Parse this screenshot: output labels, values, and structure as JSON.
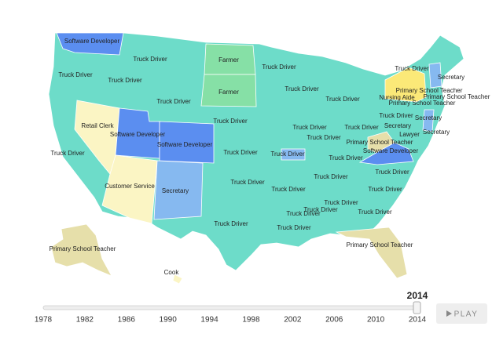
{
  "map": {
    "labels": [
      "Software Developer",
      "Truck Driver",
      "Farmer",
      "Truck Driver",
      "Truck Driver",
      "Farmer",
      "Truck Driver",
      "Truck Driver",
      "Truck Driver",
      "Secretary",
      "Truck Driver",
      "Nursing Aide",
      "Primary School Teacher",
      "Primary School Teacher",
      "Primary School Teacher",
      "Truck Driver",
      "Retail Clerk",
      "Truck Driver",
      "Truck Driver",
      "Secretary",
      "Software Developer",
      "Software Developer",
      "Truck Driver",
      "Truck Driver",
      "Secretary",
      "Truck Driver",
      "Lawyer",
      "Secretary",
      "Primary School Teacher",
      "Truck Driver",
      "Truck Driver",
      "Truck Driver",
      "Truck Driver",
      "Software Developer",
      "Truck Driver",
      "Truck Driver",
      "Customer Service",
      "Secretary",
      "Truck Driver",
      "Truck Driver",
      "Truck Driver",
      "Truck Driver",
      "Truck Driver",
      "Truck Driver",
      "Truck Driver",
      "Truck Driver",
      "Truck Driver",
      "Primary School Teacher",
      "Primary School Teacher",
      "Cook"
    ]
  },
  "timeline": {
    "current": "2014",
    "years": [
      "1978",
      "1982",
      "1986",
      "1990",
      "1994",
      "1998",
      "2002",
      "2006",
      "2010",
      "2014"
    ]
  },
  "play_button": {
    "label": "PLAY"
  }
}
